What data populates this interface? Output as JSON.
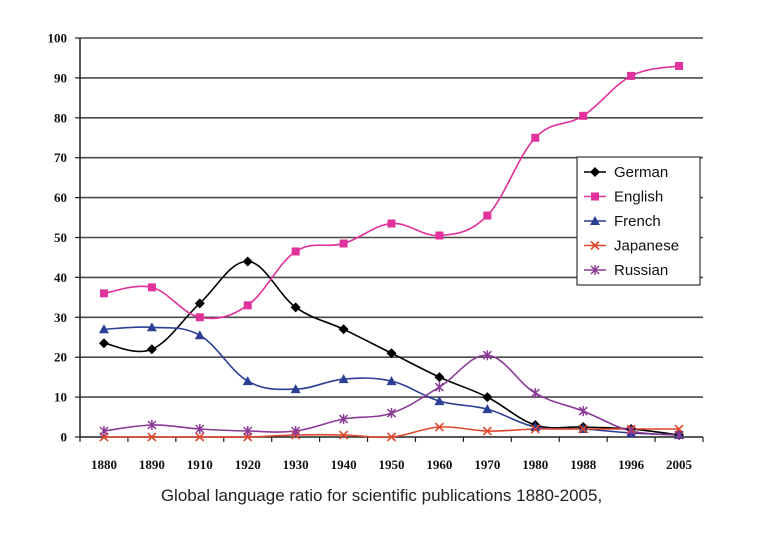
{
  "chart_data": {
    "type": "line",
    "title": "",
    "caption": "Global language ratio for scientific publications 1880-2005,",
    "xlabel": "",
    "ylabel": "",
    "categories": [
      "1880",
      "1890",
      "1910",
      "1920",
      "1930",
      "1940",
      "1950",
      "1960",
      "1970",
      "1980",
      "1988",
      "1996",
      "2005"
    ],
    "ylim": [
      0,
      100
    ],
    "yticks": [
      0,
      10,
      20,
      30,
      40,
      50,
      60,
      70,
      80,
      90,
      100
    ],
    "grid": true,
    "legend_position": "right",
    "series": [
      {
        "name": "German",
        "color": "#000000",
        "marker": "diamond",
        "values": [
          23.5,
          22,
          33.5,
          44,
          32.5,
          27,
          21,
          15,
          10,
          3,
          2.5,
          2,
          0.5
        ]
      },
      {
        "name": "English",
        "color": "#e0329a",
        "marker": "square",
        "values": [
          36,
          37.5,
          30,
          33,
          46.5,
          48.5,
          53.5,
          50.5,
          55.5,
          75,
          80.5,
          90.5,
          93
        ]
      },
      {
        "name": "French",
        "color": "#2b3f96",
        "marker": "triangle",
        "values": [
          27,
          27.5,
          25.5,
          14,
          12,
          14.5,
          14,
          9,
          7,
          2.5,
          2,
          1,
          0.5
        ]
      },
      {
        "name": "Japanese",
        "color": "#e0472c",
        "marker": "x",
        "values": [
          0,
          0,
          0,
          0,
          0.5,
          0.5,
          0,
          2.5,
          1.5,
          2,
          2,
          2,
          2
        ]
      },
      {
        "name": "Russian",
        "color": "#8a3a96",
        "marker": "star",
        "values": [
          1.5,
          3,
          2,
          1.5,
          1.5,
          4.5,
          6,
          12.5,
          20.5,
          11,
          6.5,
          1.5,
          0.5
        ]
      }
    ]
  }
}
